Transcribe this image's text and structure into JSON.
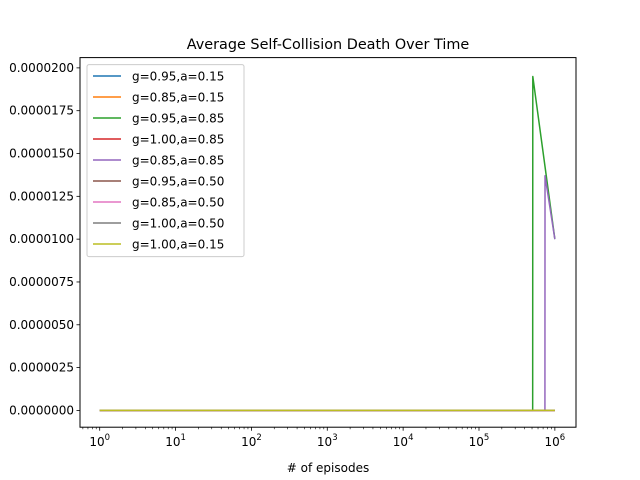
{
  "chart_data": {
    "type": "line",
    "title": "Average Self-Collision Death Over Time",
    "xlabel": "# of episodes",
    "ylabel": "",
    "x_scale": "log",
    "xlim": [
      0.55,
      1900000
    ],
    "ylim": [
      -9.8e-07,
      2.06e-05
    ],
    "grid": false,
    "legend_position": "upper-left",
    "x_ticks": [
      {
        "value": 1,
        "base": "10",
        "exp": "0"
      },
      {
        "value": 10,
        "base": "10",
        "exp": "1"
      },
      {
        "value": 100,
        "base": "10",
        "exp": "2"
      },
      {
        "value": 1000,
        "base": "10",
        "exp": "3"
      },
      {
        "value": 10000,
        "base": "10",
        "exp": "4"
      },
      {
        "value": 100000,
        "base": "10",
        "exp": "5"
      },
      {
        "value": 1000000,
        "base": "10",
        "exp": "6"
      }
    ],
    "y_ticks": [
      {
        "value": 0.0,
        "label": "0.0000000"
      },
      {
        "value": 2.5e-06,
        "label": "0.0000025"
      },
      {
        "value": 5e-06,
        "label": "0.0000050"
      },
      {
        "value": 7.5e-06,
        "label": "0.0000075"
      },
      {
        "value": 1e-05,
        "label": "0.0000100"
      },
      {
        "value": 1.25e-05,
        "label": "0.0000125"
      },
      {
        "value": 1.5e-05,
        "label": "0.0000150"
      },
      {
        "value": 1.75e-05,
        "label": "0.0000175"
      },
      {
        "value": 2e-05,
        "label": "0.0000200"
      }
    ],
    "series": [
      {
        "name": "g=0.95,a=0.15",
        "color": "#1f77b4",
        "x": [
          1,
          1000000
        ],
        "y": [
          0,
          0
        ]
      },
      {
        "name": "g=0.85,a=0.15",
        "color": "#ff7f0e",
        "x": [
          1,
          1000000
        ],
        "y": [
          0,
          0
        ]
      },
      {
        "name": "g=0.95,a=0.85",
        "color": "#2ca02c",
        "x": [
          1,
          510000,
          512000,
          1000000
        ],
        "y": [
          0,
          0,
          1.95e-05,
          1e-05
        ]
      },
      {
        "name": "g=1.00,a=0.85",
        "color": "#d62728",
        "x": [
          1,
          1000000
        ],
        "y": [
          0,
          0
        ]
      },
      {
        "name": "g=0.85,a=0.85",
        "color": "#9467bd",
        "x": [
          1,
          740000,
          742000,
          1000000
        ],
        "y": [
          0,
          0,
          1.37e-05,
          1e-05
        ]
      },
      {
        "name": "g=0.95,a=0.50",
        "color": "#8c564b",
        "x": [
          1,
          1000000
        ],
        "y": [
          0,
          0
        ]
      },
      {
        "name": "g=0.85,a=0.50",
        "color": "#e377c2",
        "x": [
          1,
          1000000
        ],
        "y": [
          0,
          0
        ]
      },
      {
        "name": "g=1.00,a=0.50",
        "color": "#7f7f7f",
        "x": [
          1,
          1000000
        ],
        "y": [
          0,
          0
        ]
      },
      {
        "name": "g=1.00,a=0.15",
        "color": "#bcbd22",
        "x": [
          1,
          1000000
        ],
        "y": [
          0,
          0
        ]
      }
    ]
  }
}
